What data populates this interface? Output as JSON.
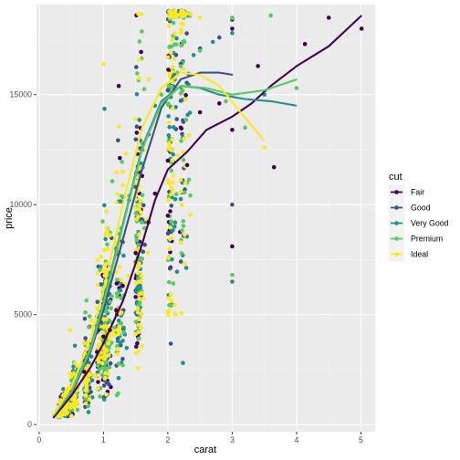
{
  "chart_data": {
    "type": "scatter",
    "title": "",
    "xlabel": "carat",
    "ylabel": "price",
    "xlim": [
      -0.04,
      5.22
    ],
    "ylim": [
      -326,
      19097
    ],
    "x_ticks": [
      "0",
      "1",
      "2",
      "3",
      "4",
      "5"
    ],
    "y_ticks": [
      "0",
      "5000",
      "10000",
      "15000"
    ],
    "grid": true,
    "legend": {
      "title": "cut",
      "position": "right",
      "entries": [
        "Fair",
        "Good",
        "Very Good",
        "Premium",
        "Ideal"
      ]
    },
    "colors": {
      "Fair": "#440154",
      "Good": "#3B528B",
      "Very Good": "#21908C",
      "Premium": "#5DC863",
      "Ideal": "#FDE725",
      "panel": "#EBEBEB",
      "grid_major": "#FFFFFF"
    },
    "series": [
      {
        "name": "Fair",
        "smooth": [
          [
            0.22,
            300
          ],
          [
            0.5,
            1300
          ],
          [
            0.8,
            2600
          ],
          [
            1.0,
            3700
          ],
          [
            1.3,
            5600
          ],
          [
            1.6,
            8200
          ],
          [
            1.8,
            10200
          ],
          [
            2.0,
            11600
          ],
          [
            2.3,
            12400
          ],
          [
            2.6,
            13400
          ],
          [
            3.0,
            14000
          ],
          [
            3.3,
            14600
          ],
          [
            3.6,
            15400
          ],
          [
            4.0,
            16300
          ],
          [
            4.5,
            17200
          ],
          [
            5.01,
            18600
          ]
        ],
        "points": [
          [
            0.5,
            1500
          ],
          [
            0.7,
            2400
          ],
          [
            0.9,
            3300
          ],
          [
            1.0,
            4000
          ],
          [
            1.0,
            5500
          ],
          [
            1.1,
            4300
          ],
          [
            1.2,
            5200
          ],
          [
            1.3,
            6300
          ],
          [
            1.5,
            7800
          ],
          [
            1.5,
            5800
          ],
          [
            1.7,
            9200
          ],
          [
            1.8,
            10500
          ],
          [
            2.0,
            12000
          ],
          [
            2.0,
            9500
          ],
          [
            2.2,
            13500
          ],
          [
            2.3,
            11800
          ],
          [
            2.5,
            14200
          ],
          [
            2.8,
            14600
          ],
          [
            3.0,
            8100
          ],
          [
            3.0,
            13400
          ],
          [
            3.0,
            18000
          ],
          [
            3.4,
            16300
          ],
          [
            3.65,
            11700
          ],
          [
            4.13,
            17300
          ],
          [
            4.5,
            18500
          ],
          [
            5.01,
            18000
          ]
        ]
      },
      {
        "name": "Good",
        "smooth": [
          [
            0.22,
            400
          ],
          [
            0.5,
            1400
          ],
          [
            0.8,
            3300
          ],
          [
            1.0,
            5200
          ],
          [
            1.3,
            8400
          ],
          [
            1.6,
            11600
          ],
          [
            1.9,
            14400
          ],
          [
            2.2,
            15700
          ],
          [
            2.5,
            16000
          ],
          [
            2.8,
            16000
          ],
          [
            3.01,
            15900
          ]
        ],
        "points": [
          [
            0.7,
            2900
          ],
          [
            0.9,
            4200
          ],
          [
            1.0,
            5400
          ],
          [
            1.1,
            6300
          ],
          [
            1.3,
            8300
          ],
          [
            1.5,
            10800
          ],
          [
            1.7,
            13200
          ],
          [
            2.0,
            15200
          ],
          [
            2.2,
            16400
          ],
          [
            2.5,
            17100
          ],
          [
            2.8,
            17600
          ],
          [
            3.0,
            18400
          ],
          [
            3.0,
            10000
          ]
        ]
      },
      {
        "name": "Very Good",
        "smooth": [
          [
            0.22,
            400
          ],
          [
            0.5,
            1500
          ],
          [
            0.8,
            3500
          ],
          [
            1.0,
            5600
          ],
          [
            1.3,
            9100
          ],
          [
            1.6,
            12600
          ],
          [
            1.9,
            14700
          ],
          [
            2.2,
            15400
          ],
          [
            2.5,
            15300
          ],
          [
            2.8,
            15000
          ],
          [
            3.2,
            14800
          ],
          [
            3.6,
            14700
          ],
          [
            4.0,
            14500
          ]
        ],
        "points": [
          [
            0.6,
            2500
          ],
          [
            0.9,
            4500
          ],
          [
            1.0,
            6000
          ],
          [
            1.2,
            8000
          ],
          [
            1.4,
            10200
          ],
          [
            1.6,
            12500
          ],
          [
            1.8,
            14500
          ],
          [
            2.1,
            15900
          ],
          [
            2.4,
            16800
          ],
          [
            2.7,
            17400
          ],
          [
            3.0,
            6500
          ],
          [
            3.0,
            17800
          ],
          [
            3.5,
            15000
          ]
        ]
      },
      {
        "name": "Premium",
        "smooth": [
          [
            0.22,
            400
          ],
          [
            0.5,
            1500
          ],
          [
            0.8,
            3400
          ],
          [
            1.0,
            5500
          ],
          [
            1.3,
            9000
          ],
          [
            1.6,
            12500
          ],
          [
            1.9,
            14600
          ],
          [
            2.2,
            15400
          ],
          [
            2.6,
            15300
          ],
          [
            3.0,
            15000
          ],
          [
            3.5,
            15200
          ],
          [
            4.01,
            15700
          ]
        ],
        "points": [
          [
            0.7,
            3100
          ],
          [
            1.0,
            5900
          ],
          [
            1.2,
            7900
          ],
          [
            1.4,
            10400
          ],
          [
            1.6,
            12800
          ],
          [
            1.9,
            15000
          ],
          [
            2.2,
            16300
          ],
          [
            2.5,
            17000
          ],
          [
            2.9,
            14700
          ],
          [
            3.0,
            18500
          ],
          [
            3.0,
            6800
          ],
          [
            3.2,
            13500
          ],
          [
            3.6,
            18600
          ],
          [
            4.0,
            15300
          ]
        ]
      },
      {
        "name": "Ideal",
        "smooth": [
          [
            0.22,
            450
          ],
          [
            0.5,
            1700
          ],
          [
            0.8,
            3900
          ],
          [
            1.0,
            6100
          ],
          [
            1.3,
            10000
          ],
          [
            1.6,
            13500
          ],
          [
            1.9,
            15300
          ],
          [
            2.2,
            16000
          ],
          [
            2.5,
            15900
          ],
          [
            2.8,
            15400
          ],
          [
            3.1,
            14300
          ],
          [
            3.5,
            12900
          ]
        ],
        "points": [
          [
            0.5,
            2200
          ],
          [
            0.7,
            3700
          ],
          [
            0.9,
            5300
          ],
          [
            1.0,
            7000
          ],
          [
            1.0,
            16400
          ],
          [
            1.1,
            8600
          ],
          [
            1.2,
            10100
          ],
          [
            1.3,
            11500
          ],
          [
            1.5,
            13900
          ],
          [
            1.7,
            15700
          ],
          [
            2.0,
            16700
          ],
          [
            2.2,
            17800
          ],
          [
            2.5,
            18500
          ],
          [
            3.5,
            12600
          ]
        ]
      }
    ]
  }
}
